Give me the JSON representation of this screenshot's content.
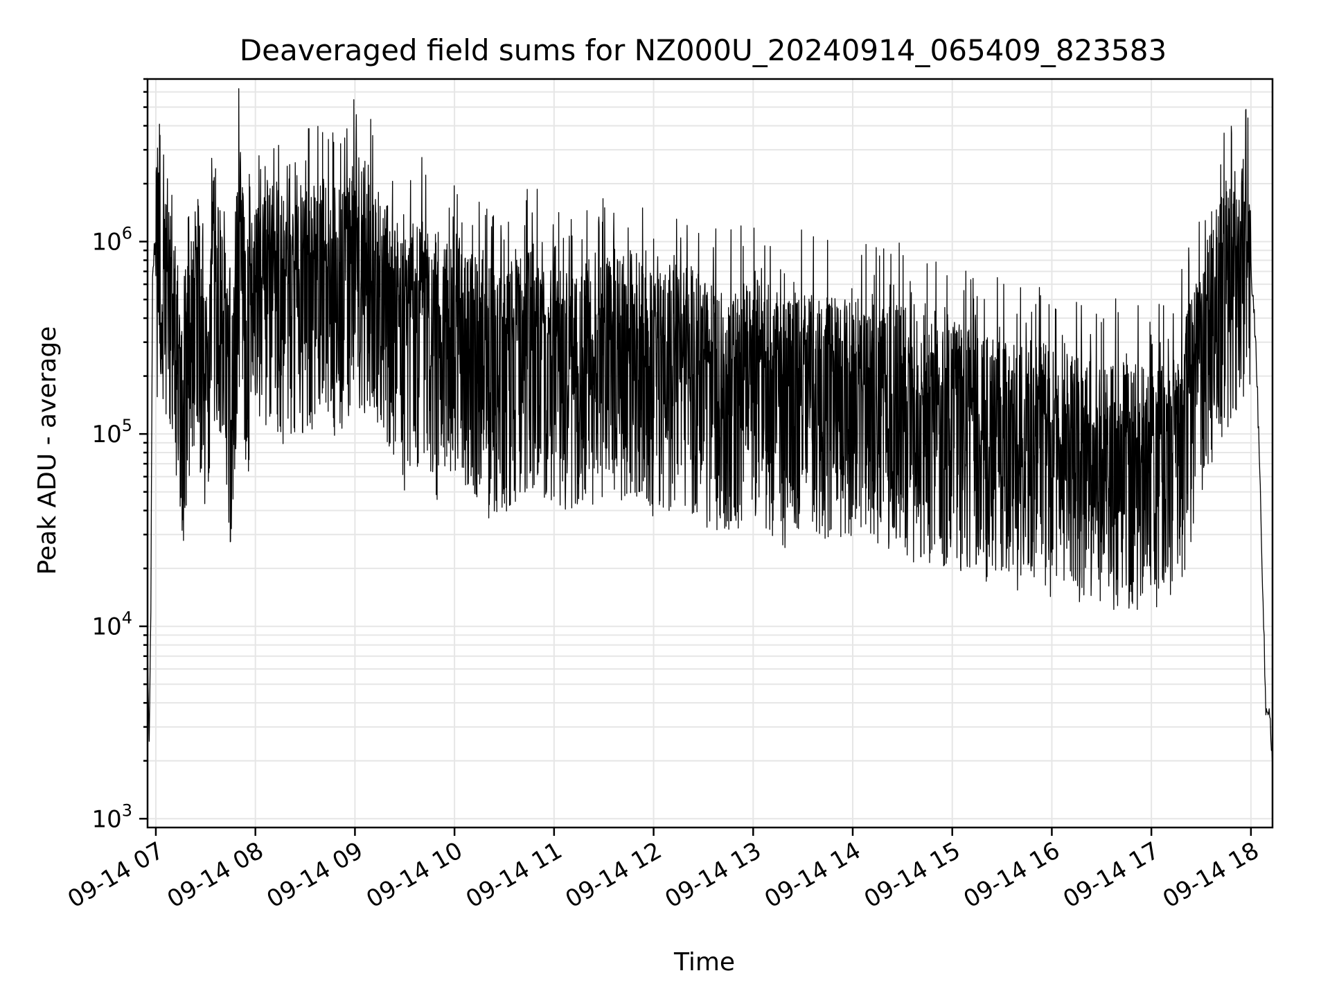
{
  "chart_data": {
    "type": "line",
    "title": "Deaveraged field sums for NZ000U_20240914_065409_823583",
    "xlabel": "Time",
    "ylabel": "Peak ADU - average",
    "yscale": "log",
    "xlim": [
      "09-14 06:55",
      "09-14 18:13"
    ],
    "ylim": [
      900,
      7000000
    ],
    "grid": true,
    "legend": "none",
    "line_color": "#000000",
    "x_ticks": [
      "09-14 07",
      "09-14 08",
      "09-14 09",
      "09-14 10",
      "09-14 11",
      "09-14 12",
      "09-14 13",
      "09-14 14",
      "09-14 15",
      "09-14 16",
      "09-14 17",
      "09-14 18"
    ],
    "y_ticks": [
      {
        "value": 1000,
        "base": "10",
        "exp": "3"
      },
      {
        "value": 10000,
        "base": "10",
        "exp": "4"
      },
      {
        "value": 100000,
        "base": "10",
        "exp": "5"
      },
      {
        "value": 1000000,
        "base": "10",
        "exp": "6"
      }
    ],
    "series": [
      {
        "note": "dense noisy trace; envelope approximations in data units (time, ADU)",
        "x": [
          "06:55",
          "06:56",
          "06:57",
          "06:58",
          "06:59",
          "07:00",
          "07:05",
          "07:10",
          "07:15",
          "07:20",
          "07:25",
          "07:30",
          "07:35",
          "07:40",
          "07:45",
          "07:50",
          "07:55",
          "08:00",
          "08:10",
          "08:20",
          "08:30",
          "08:40",
          "08:50",
          "09:00",
          "09:10",
          "09:20",
          "09:30",
          "09:40",
          "09:50",
          "10:00",
          "10:15",
          "10:30",
          "10:45",
          "11:00",
          "11:15",
          "11:30",
          "11:45",
          "12:00",
          "12:15",
          "12:30",
          "12:45",
          "13:00",
          "13:15",
          "13:30",
          "13:45",
          "14:00",
          "14:15",
          "14:30",
          "14:45",
          "15:00",
          "15:15",
          "15:30",
          "15:45",
          "16:00",
          "16:15",
          "16:30",
          "16:45",
          "17:00",
          "17:15",
          "17:30",
          "17:40",
          "17:50",
          "17:55",
          "18:00",
          "18:03",
          "18:06",
          "18:09",
          "18:11",
          "18:13"
        ],
        "y": [
          8000,
          2200,
          13000,
          600000,
          900000,
          1000000,
          700000,
          400000,
          180000,
          300000,
          700000,
          200000,
          900000,
          600000,
          150000,
          1300000,
          400000,
          600000,
          800000,
          600000,
          700000,
          900000,
          700000,
          1000000,
          800000,
          600000,
          350000,
          500000,
          300000,
          450000,
          300000,
          250000,
          350000,
          300000,
          250000,
          300000,
          350000,
          250000,
          300000,
          250000,
          200000,
          250000,
          180000,
          220000,
          200000,
          200000,
          170000,
          180000,
          150000,
          140000,
          130000,
          120000,
          120000,
          110000,
          100000,
          95000,
          95000,
          80000,
          100000,
          300000,
          600000,
          900000,
          1000000,
          700000,
          300000,
          40000,
          3500,
          4000,
          1800
        ]
      }
    ]
  }
}
